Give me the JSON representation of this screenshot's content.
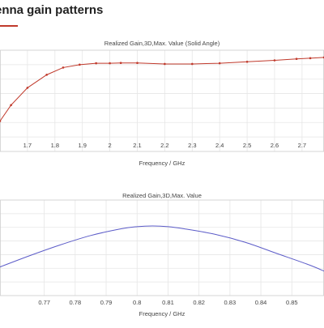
{
  "page": {
    "title": "enna gain patterns"
  },
  "colors": {
    "accent": "#c0392b",
    "series_top": "#c0392b",
    "series_bottom": "#5b5bc8",
    "grid": "#e6e6e6"
  },
  "chart_data": [
    {
      "type": "line",
      "title": "Realized Gain,3D,Max. Value (Solid Angle)",
      "xlabel": "Frequency / GHz",
      "ylabel": "",
      "xlim": [
        1.6,
        2.78
      ],
      "ylim": [
        0,
        7
      ],
      "x_ticks": [
        "1.7",
        "1.8",
        "1.9",
        "2",
        "2.1",
        "2.2",
        "2.3",
        "2.4",
        "2.5",
        "2.6",
        "2.7"
      ],
      "y_grid_count": 7,
      "grid": true,
      "series": [
        {
          "markers": true,
          "x": [
            1.6,
            1.64,
            1.7,
            1.77,
            1.83,
            1.89,
            1.95,
            2.0,
            2.04,
            2.1,
            2.2,
            2.3,
            2.4,
            2.5,
            2.6,
            2.68,
            2.73,
            2.78
          ],
          "y": [
            2.1,
            3.2,
            4.4,
            5.3,
            5.8,
            6.0,
            6.1,
            6.1,
            6.12,
            6.12,
            6.05,
            6.05,
            6.1,
            6.2,
            6.3,
            6.4,
            6.45,
            6.5
          ]
        }
      ]
    },
    {
      "type": "line",
      "title": "Realized Gain,3D,Max. Value",
      "xlabel": "Frequency / GHz",
      "ylabel": "",
      "xlim": [
        0.7557,
        0.8604
      ],
      "ylim": [
        0,
        7
      ],
      "x_ticks": [
        "0.77",
        "0.78",
        "0.79",
        "0.8",
        "0.81",
        "0.82",
        "0.83",
        "0.84",
        "0.85"
      ],
      "y_grid_count": 7,
      "grid": true,
      "series": [
        {
          "markers": false,
          "x": [
            0.7557,
            0.765,
            0.775,
            0.785,
            0.795,
            0.8,
            0.805,
            0.81,
            0.815,
            0.825,
            0.835,
            0.845,
            0.855,
            0.8604
          ],
          "y": [
            2.1,
            2.9,
            3.7,
            4.4,
            4.9,
            5.05,
            5.1,
            5.05,
            4.9,
            4.5,
            3.9,
            3.1,
            2.3,
            1.8
          ]
        }
      ]
    }
  ]
}
